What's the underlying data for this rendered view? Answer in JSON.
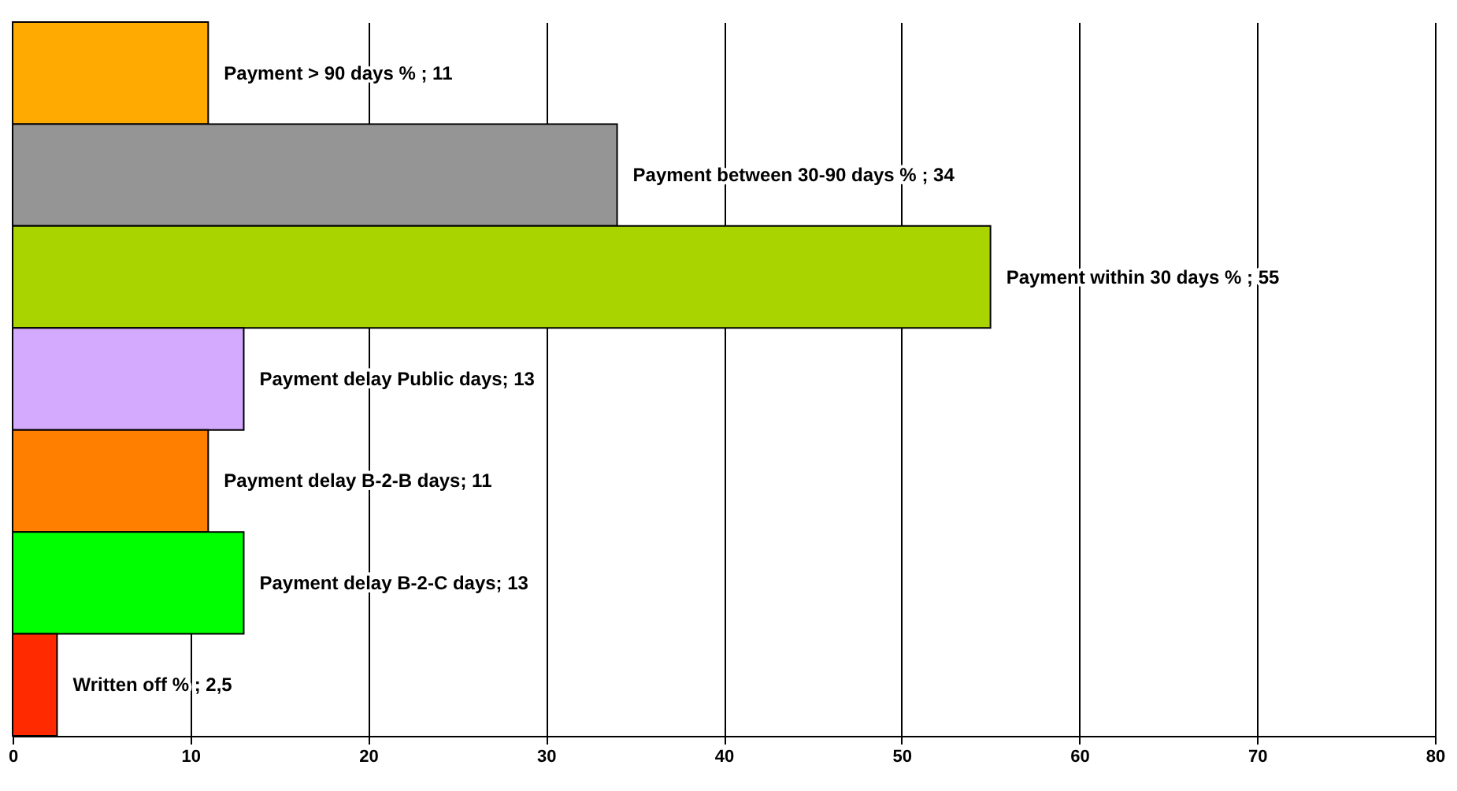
{
  "chart_data": {
    "type": "bar",
    "orientation": "horizontal",
    "categories": [
      null,
      null,
      null,
      null,
      null,
      null,
      null
    ],
    "values": [
      11,
      34,
      55,
      13,
      11,
      13,
      2.5
    ],
    "colors": [
      "#ffaa00",
      "#959595",
      "#aad400",
      "#d4aaff",
      "#ff7f00",
      "#00ff00",
      "#ff2a00"
    ],
    "value_labels": [
      "Payment > 90 days % ; 11",
      "Payment between 30-90 days % ; 34",
      "Payment within 30 days % ; 55",
      "Payment delay Public days; 13",
      "Payment delay B-2-B days; 11",
      "Payment delay B-2-C days; 13",
      "Written off % ; 2,5"
    ],
    "xlim": [
      0,
      80
    ],
    "xticks": [
      0,
      10,
      20,
      30,
      40,
      50,
      60,
      70,
      80
    ],
    "grid": "x"
  }
}
